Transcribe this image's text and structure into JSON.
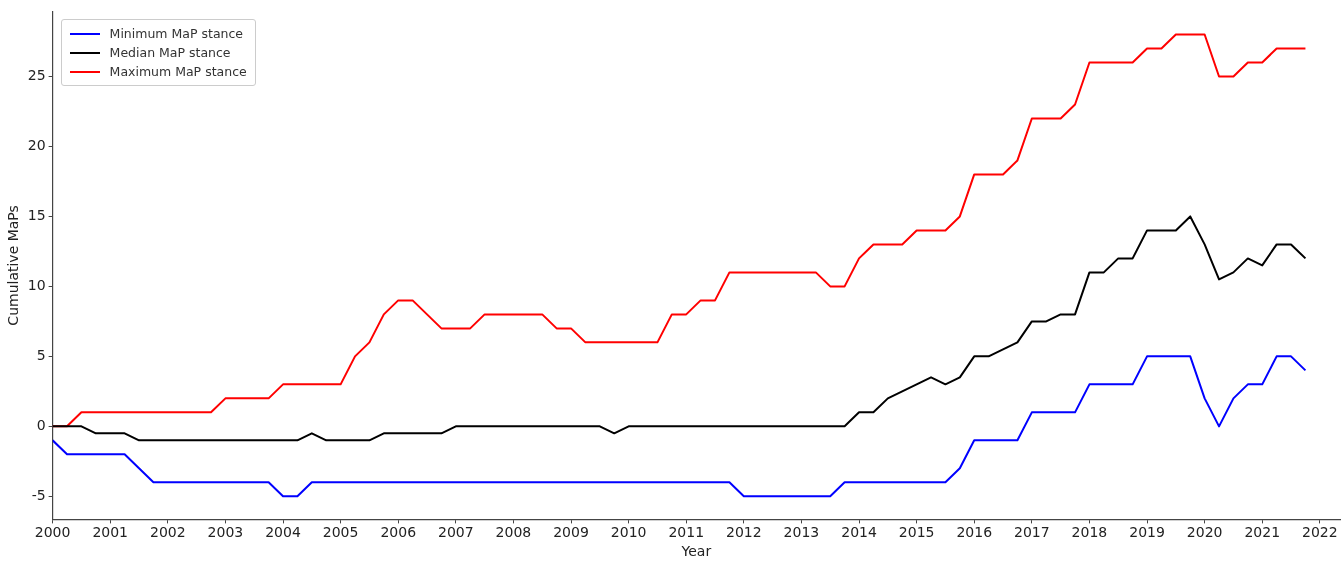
{
  "chart_data": {
    "type": "line",
    "xlabel": "Year",
    "ylabel": "Cumulative MaPs",
    "x": [
      2000,
      2000.25,
      2000.5,
      2000.75,
      2001,
      2001.25,
      2001.5,
      2001.75,
      2002,
      2002.25,
      2002.5,
      2002.75,
      2003,
      2003.25,
      2003.5,
      2003.75,
      2004,
      2004.25,
      2004.5,
      2004.75,
      2005,
      2005.25,
      2005.5,
      2005.75,
      2006,
      2006.25,
      2006.5,
      2006.75,
      2007,
      2007.25,
      2007.5,
      2007.75,
      2008,
      2008.25,
      2008.5,
      2008.75,
      2009,
      2009.25,
      2009.5,
      2009.75,
      2010,
      2010.25,
      2010.5,
      2010.75,
      2011,
      2011.25,
      2011.5,
      2011.75,
      2012,
      2012.25,
      2012.5,
      2012.75,
      2013,
      2013.25,
      2013.5,
      2013.75,
      2014,
      2014.25,
      2014.5,
      2014.75,
      2015,
      2015.25,
      2015.5,
      2015.75,
      2016,
      2016.25,
      2016.5,
      2016.75,
      2017,
      2017.25,
      2017.5,
      2017.75,
      2018,
      2018.25,
      2018.5,
      2018.75,
      2019,
      2019.25,
      2019.5,
      2019.75,
      2020,
      2020.25,
      2020.5,
      2020.75,
      2021,
      2021.25,
      2021.5,
      2021.75
    ],
    "series": [
      {
        "name": "Minimum MaP stance",
        "color": "#0000ff",
        "values": [
          -1,
          -2,
          -2,
          -2,
          -2,
          -2,
          -3,
          -4,
          -4,
          -4,
          -4,
          -4,
          -4,
          -4,
          -4,
          -4,
          -5,
          -5,
          -4,
          -4,
          -4,
          -4,
          -4,
          -4,
          -4,
          -4,
          -4,
          -4,
          -4,
          -4,
          -4,
          -4,
          -4,
          -4,
          -4,
          -4,
          -4,
          -4,
          -4,
          -4,
          -4,
          -4,
          -4,
          -4,
          -4,
          -4,
          -4,
          -4,
          -5,
          -5,
          -5,
          -5,
          -5,
          -5,
          -5,
          -4,
          -4,
          -4,
          -4,
          -4,
          -4,
          -4,
          -4,
          -3,
          -1,
          -1,
          -1,
          -1,
          1,
          1,
          1,
          1,
          3,
          3,
          3,
          3,
          5,
          5,
          5,
          5,
          2,
          0,
          2,
          3,
          3,
          5,
          5,
          4
        ]
      },
      {
        "name": "Median MaP stance",
        "color": "#000000",
        "values": [
          0,
          0,
          0,
          -0.5,
          -0.5,
          -0.5,
          -1,
          -1,
          -1,
          -1,
          -1,
          -1,
          -1,
          -1,
          -1,
          -1,
          -1,
          -1,
          -0.5,
          -1,
          -1,
          -1,
          -1,
          -0.5,
          -0.5,
          -0.5,
          -0.5,
          -0.5,
          0,
          0,
          0,
          0,
          0,
          0,
          0,
          0,
          0,
          0,
          0,
          -0.5,
          0,
          0,
          0,
          0,
          0,
          0,
          0,
          0,
          0,
          0,
          0,
          0,
          0,
          0,
          0,
          0,
          1,
          1,
          2,
          2.5,
          3,
          3.5,
          3,
          3.5,
          5,
          5,
          5.5,
          6,
          7.5,
          7.5,
          8,
          8,
          11,
          11,
          12,
          12,
          14,
          14,
          14,
          15,
          13,
          10.5,
          11,
          12,
          11.5,
          13,
          13,
          12
        ]
      },
      {
        "name": "Maximum MaP stance",
        "color": "#ff0000",
        "values": [
          0,
          0,
          1,
          1,
          1,
          1,
          1,
          1,
          1,
          1,
          1,
          1,
          2,
          2,
          2,
          2,
          3,
          3,
          3,
          3,
          3,
          5,
          6,
          8,
          9,
          9,
          8,
          7,
          7,
          7,
          8,
          8,
          8,
          8,
          8,
          7,
          7,
          6,
          6,
          6,
          6,
          6,
          6,
          8,
          8,
          9,
          9,
          11,
          11,
          11,
          11,
          11,
          11,
          11,
          10,
          10,
          12,
          13,
          13,
          13,
          14,
          14,
          14,
          15,
          18,
          18,
          18,
          19,
          22,
          22,
          22,
          23,
          26,
          26,
          26,
          26,
          27,
          27,
          28,
          28,
          28,
          25,
          25,
          26,
          26,
          27,
          27,
          27
        ]
      }
    ],
    "xlim": [
      2000,
      2022.35
    ],
    "xticks": [
      2000,
      2001,
      2002,
      2003,
      2004,
      2005,
      2006,
      2007,
      2008,
      2009,
      2010,
      2011,
      2012,
      2013,
      2014,
      2015,
      2016,
      2017,
      2018,
      2019,
      2020,
      2021,
      2022
    ],
    "ylim": [
      -6.65,
      29.65
    ],
    "yticks": [
      -5,
      0,
      5,
      10,
      15,
      20,
      25
    ],
    "legend": "top left"
  }
}
